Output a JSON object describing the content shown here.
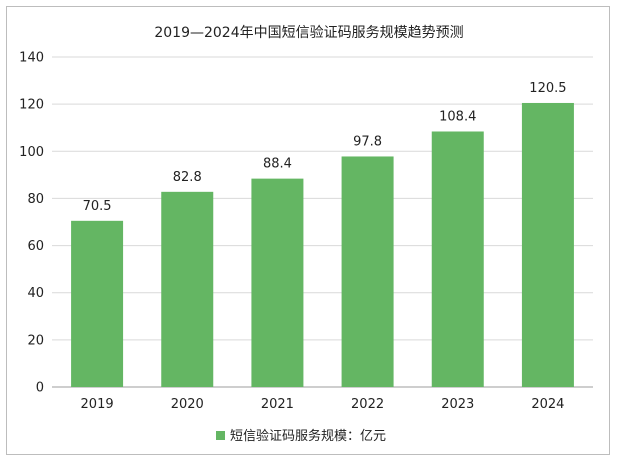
{
  "chart_data": {
    "type": "bar",
    "title": "2019—2024年中国短信验证码服务规模趋势预测",
    "categories": [
      "2019",
      "2020",
      "2021",
      "2022",
      "2023",
      "2024"
    ],
    "series": [
      {
        "name": "短信验证码服务规模：亿元",
        "values": [
          70.5,
          82.8,
          88.4,
          97.8,
          108.4,
          120.5
        ]
      }
    ],
    "data_labels": [
      "70.5",
      "82.8",
      "88.4",
      "97.8",
      "108.4",
      "120.5"
    ],
    "ylim": [
      0,
      140
    ],
    "y_ticks": [
      0,
      20,
      40,
      60,
      80,
      100,
      120,
      140
    ],
    "grid": true,
    "legend": "bottom",
    "bar_color": "#64b663"
  }
}
